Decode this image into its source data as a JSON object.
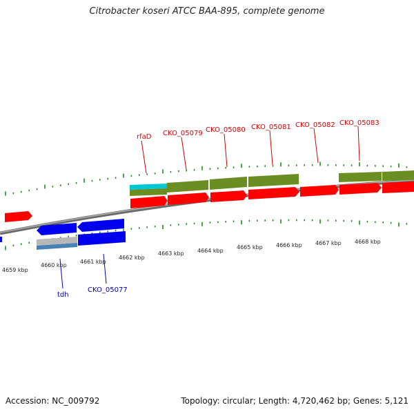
{
  "title": "Citrobacter koseri ATCC BAA-895, complete genome",
  "footer": {
    "accession": "Accession: NC_009792",
    "summary": "Topology: circular; Length: 4,720,462 bp; Genes: 5,121"
  },
  "colors": {
    "backbone": "#888888",
    "tick": "#228b22",
    "forward_label": "#cc0000",
    "reverse_label": "#0000bb",
    "cds_forward": "#ff0000",
    "cds_reverse": "#0000ee",
    "gene_forward": "#6b8e23",
    "gene_reverse": "#4682b4",
    "rna_feature": "#00c8d2",
    "misc_feature": "#b8b8b8"
  },
  "axis": {
    "unit": "kbp",
    "ticks": [
      {
        "label": "4659 kbp",
        "kbp": 4659
      },
      {
        "label": "4660 kbp",
        "kbp": 4660
      },
      {
        "label": "4661 kbp",
        "kbp": 4661
      },
      {
        "label": "4662 kbp",
        "kbp": 4662
      },
      {
        "label": "4663 kbp",
        "kbp": 4663
      },
      {
        "label": "4664 kbp",
        "kbp": 4664
      },
      {
        "label": "4665 kbp",
        "kbp": 4665
      },
      {
        "label": "4666 kbp",
        "kbp": 4666
      },
      {
        "label": "4667 kbp",
        "kbp": 4667
      },
      {
        "label": "4668 kbp",
        "kbp": 4668
      }
    ]
  },
  "labels": {
    "forward": [
      "rfaD",
      "CKO_05079",
      "CKO_05080",
      "CKO_05081",
      "CKO_05082",
      "CKO_05083"
    ],
    "reverse": [
      "tdh",
      "CKO_05077"
    ]
  }
}
